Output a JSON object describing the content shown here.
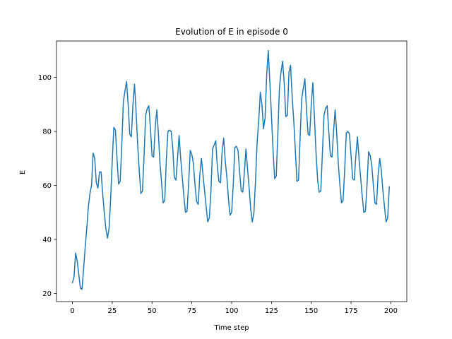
{
  "chart_data": {
    "type": "line",
    "title": "Evolution of E in episode 0",
    "xlabel": "Time step",
    "ylabel": "E",
    "xlim": [
      -10,
      210
    ],
    "ylim": [
      17,
      113.5
    ],
    "xticks": [
      0,
      25,
      50,
      75,
      100,
      125,
      150,
      175,
      200
    ],
    "yticks": [
      20,
      40,
      60,
      80,
      100
    ],
    "grid": false,
    "color": "#1f77b4",
    "series": [
      {
        "x": [
          0,
          1,
          2,
          3,
          4,
          5,
          6,
          7,
          8,
          9,
          10,
          11,
          12,
          13,
          14,
          15,
          16,
          17,
          18,
          19,
          20,
          21,
          22,
          23,
          24,
          25,
          26,
          27,
          28,
          29,
          30,
          31,
          32,
          33,
          34,
          35,
          36,
          37,
          38,
          39,
          40,
          41,
          42,
          43,
          44,
          45,
          46,
          47,
          48,
          49,
          50,
          51,
          52,
          53,
          54,
          55,
          56,
          57,
          58,
          59,
          60,
          61,
          62,
          63,
          64,
          65,
          66,
          67,
          68,
          69,
          70,
          71,
          72,
          73,
          74,
          75,
          76,
          77,
          78,
          79,
          80,
          81,
          82,
          83,
          84,
          85,
          86,
          87,
          88,
          89,
          90,
          91,
          92,
          93,
          94,
          95,
          96,
          97,
          98,
          99,
          100,
          101,
          102,
          103,
          104,
          105,
          106,
          107,
          108,
          109,
          110,
          111,
          112,
          113,
          114,
          115,
          116,
          117,
          118,
          119,
          120,
          121,
          122,
          123,
          124,
          125,
          126,
          127,
          128,
          129,
          130,
          131,
          132,
          133,
          134,
          135,
          136,
          137,
          138,
          139,
          140,
          141,
          142,
          143,
          144,
          145,
          146,
          147,
          148,
          149,
          150,
          151,
          152,
          153,
          154,
          155,
          156,
          157,
          158,
          159,
          160,
          161,
          162,
          163,
          164,
          165,
          166,
          167,
          168,
          169,
          170,
          171,
          172,
          173,
          174,
          175,
          176,
          177,
          178,
          179,
          180,
          181,
          182,
          183,
          184,
          185,
          186,
          187,
          188,
          189,
          190,
          191,
          192,
          193,
          194,
          195,
          196,
          197,
          198,
          199
        ],
        "values": [
          24,
          26,
          35,
          32,
          27,
          22,
          21.5,
          29,
          37,
          44,
          52,
          57,
          60,
          72,
          70,
          61,
          59,
          65,
          65,
          57,
          50,
          44,
          40.5,
          44,
          55,
          69,
          81.5,
          80.5,
          70,
          60.5,
          61.5,
          75,
          91,
          95,
          98.5,
          90,
          79,
          78,
          90,
          97.5,
          87,
          75,
          65,
          57,
          58,
          71,
          86,
          88.5,
          89.5,
          81,
          71,
          70.5,
          81.5,
          88,
          79,
          68,
          61,
          53.5,
          54.5,
          70,
          80,
          80.5,
          80,
          74,
          63,
          62,
          70,
          78.5,
          70,
          63,
          56,
          50,
          50.5,
          61,
          73,
          71.5,
          68,
          60,
          54,
          53,
          64,
          70,
          64,
          58,
          52,
          46.5,
          48,
          58,
          73.5,
          75,
          76.5,
          67,
          61.5,
          61,
          72.5,
          77.5,
          69,
          63,
          55,
          49,
          50,
          60,
          74,
          74.5,
          73,
          65,
          58,
          57.5,
          65,
          73.5,
          66,
          59,
          51,
          46.5,
          50,
          62,
          76,
          84,
          94.5,
          90,
          81,
          85,
          101,
          110,
          98,
          86,
          73,
          62.5,
          63.5,
          79,
          96,
          102,
          106,
          98,
          85.5,
          86,
          102,
          104.5,
          93,
          84,
          73,
          61.5,
          62,
          78,
          92,
          96,
          99.5,
          88,
          79,
          78.5,
          90,
          98,
          85,
          72,
          62,
          57.5,
          58,
          72,
          86,
          88.5,
          89.5,
          80,
          71,
          70.5,
          80,
          88,
          79,
          68,
          60,
          53.5,
          54.5,
          66,
          79.5,
          80,
          79,
          71,
          62.5,
          62,
          71,
          78,
          70,
          63,
          56,
          50,
          50.5,
          60,
          72.5,
          71,
          67.5,
          60,
          53.5,
          53,
          64,
          70,
          65.5,
          58,
          52,
          46.5,
          48,
          59.5
        ]
      }
    ]
  }
}
